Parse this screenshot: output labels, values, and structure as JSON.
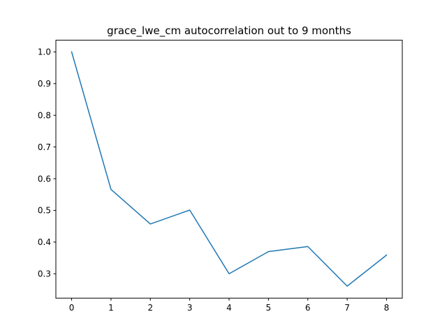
{
  "chart_data": {
    "type": "line",
    "title": "grace_lwe_cm autocorrelation out to 9 months",
    "xlabel": "",
    "ylabel": "",
    "x": [
      0,
      1,
      2,
      3,
      4,
      5,
      6,
      7,
      8
    ],
    "series": [
      {
        "values": [
          1.0,
          0.566,
          0.457,
          0.501,
          0.3,
          0.37,
          0.386,
          0.261,
          0.359
        ],
        "color": "#1f77b4"
      }
    ],
    "xlim": [
      -0.4,
      8.4
    ],
    "ylim": [
      0.2231,
      1.0369
    ],
    "xticks": [
      0,
      1,
      2,
      3,
      4,
      5,
      6,
      7,
      8
    ],
    "xtick_labels": [
      "0",
      "1",
      "2",
      "3",
      "4",
      "5",
      "6",
      "7",
      "8"
    ],
    "yticks": [
      0.3,
      0.4,
      0.5,
      0.6,
      0.7,
      0.8,
      0.9,
      1.0
    ],
    "ytick_labels": [
      "0.3",
      "0.4",
      "0.5",
      "0.6",
      "0.7",
      "0.8",
      "0.9",
      "1.0"
    ],
    "grid": false,
    "legend": false
  }
}
